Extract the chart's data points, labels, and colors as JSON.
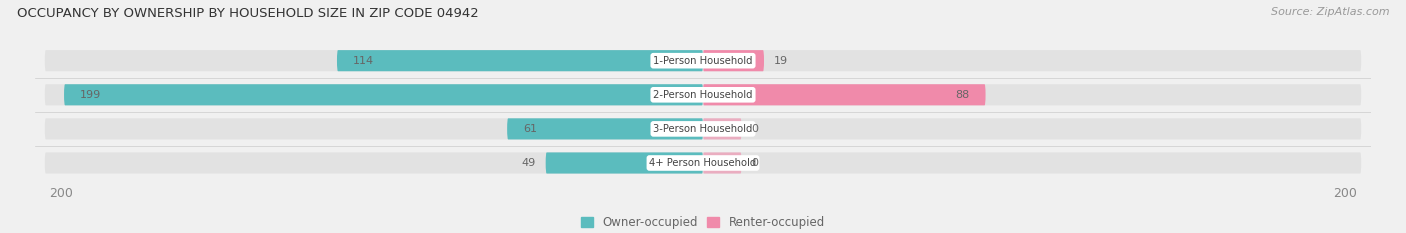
{
  "title": "OCCUPANCY BY OWNERSHIP BY HOUSEHOLD SIZE IN ZIP CODE 04942",
  "source": "Source: ZipAtlas.com",
  "categories": [
    "1-Person Household",
    "2-Person Household",
    "3-Person Household",
    "4+ Person Household"
  ],
  "owner_values": [
    114,
    199,
    61,
    49
  ],
  "renter_values": [
    19,
    88,
    0,
    0
  ],
  "owner_color": "#5bbcbe",
  "renter_color": "#f08aaa",
  "axis_max": 200,
  "background_color": "#f0f0f0",
  "bar_bg_color": "#e2e2e2",
  "label_color": "#555555",
  "title_color": "#333333",
  "bar_height": 0.62,
  "white_label_color": "#ffffff",
  "dark_label_color": "#666666",
  "legend_label_color": "#666666",
  "source_color": "#999999",
  "tick_color": "#888888"
}
